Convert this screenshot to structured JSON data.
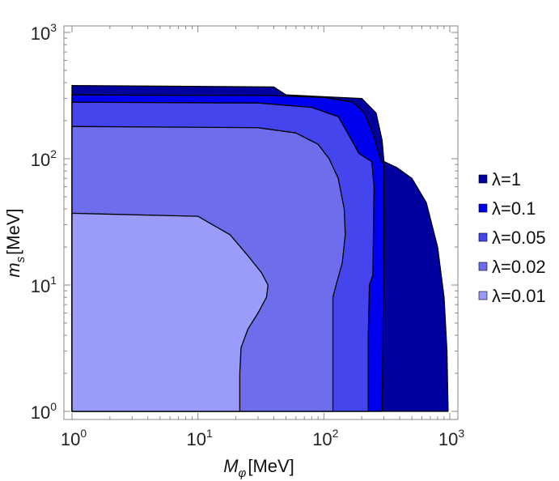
{
  "chart_data": {
    "type": "area",
    "title": "",
    "xlabel": {
      "symbol": "M",
      "sub": "φ",
      "unit": "[MeV]"
    },
    "ylabel": {
      "symbol": "m",
      "sub": "s",
      "unit": "[MeV]"
    },
    "x_scale": "log",
    "y_scale": "log",
    "xlim": [
      1,
      1000
    ],
    "ylim": [
      1,
      1000
    ],
    "x_ticks": [
      {
        "base": "10",
        "exp": "0"
      },
      {
        "base": "10",
        "exp": "1"
      },
      {
        "base": "10",
        "exp": "2"
      },
      {
        "base": "10",
        "exp": "3"
      }
    ],
    "y_ticks": [
      {
        "base": "10",
        "exp": "0"
      },
      {
        "base": "10",
        "exp": "1"
      },
      {
        "base": "10",
        "exp": "2"
      },
      {
        "base": "10",
        "exp": "3"
      }
    ],
    "grid": false,
    "legend_position": "right",
    "series": [
      {
        "name": "λ=1",
        "color": "#00009c",
        "boundary": [
          [
            1,
            380
          ],
          [
            40,
            370
          ],
          [
            50,
            320
          ],
          [
            200,
            300
          ],
          [
            260,
            230
          ],
          [
            290,
            140
          ],
          [
            300,
            95
          ],
          [
            380,
            85
          ],
          [
            500,
            70
          ],
          [
            650,
            45
          ],
          [
            800,
            20
          ],
          [
            900,
            8
          ],
          [
            950,
            3
          ],
          [
            970,
            1
          ]
        ]
      },
      {
        "name": "λ=0.1",
        "color": "#0000f0",
        "boundary": [
          [
            1,
            320
          ],
          [
            40,
            316
          ],
          [
            100,
            305
          ],
          [
            170,
            280
          ],
          [
            210,
            230
          ],
          [
            250,
            150
          ],
          [
            280,
            100
          ],
          [
            298,
            90
          ],
          [
            300,
            30
          ],
          [
            298,
            12
          ],
          [
            290,
            1
          ]
        ]
      },
      {
        "name": "λ=0.05",
        "color": "#4545ee",
        "boundary": [
          [
            1,
            280
          ],
          [
            30,
            276
          ],
          [
            80,
            255
          ],
          [
            130,
            215
          ],
          [
            160,
            150
          ],
          [
            190,
            110
          ],
          [
            220,
            100
          ],
          [
            240,
            95
          ],
          [
            250,
            60
          ],
          [
            245,
            12
          ],
          [
            230,
            10
          ],
          [
            225,
            4
          ],
          [
            225,
            1
          ]
        ]
      },
      {
        "name": "λ=0.02",
        "color": "#6e6eec",
        "boundary": [
          [
            1,
            180
          ],
          [
            30,
            176
          ],
          [
            60,
            160
          ],
          [
            90,
            130
          ],
          [
            110,
            100
          ],
          [
            130,
            70
          ],
          [
            145,
            40
          ],
          [
            148,
            25
          ],
          [
            140,
            15
          ],
          [
            125,
            10
          ],
          [
            118,
            8
          ],
          [
            118,
            1
          ]
        ]
      },
      {
        "name": "λ=0.01",
        "color": "#9b9bfa",
        "boundary": [
          [
            1,
            37
          ],
          [
            10,
            35
          ],
          [
            18,
            25
          ],
          [
            25,
            17
          ],
          [
            32,
            12.5
          ],
          [
            36,
            10
          ],
          [
            35,
            8
          ],
          [
            30,
            6
          ],
          [
            25,
            4.5
          ],
          [
            22,
            3.2
          ],
          [
            21.5,
            2
          ],
          [
            21.5,
            1
          ]
        ]
      }
    ]
  }
}
